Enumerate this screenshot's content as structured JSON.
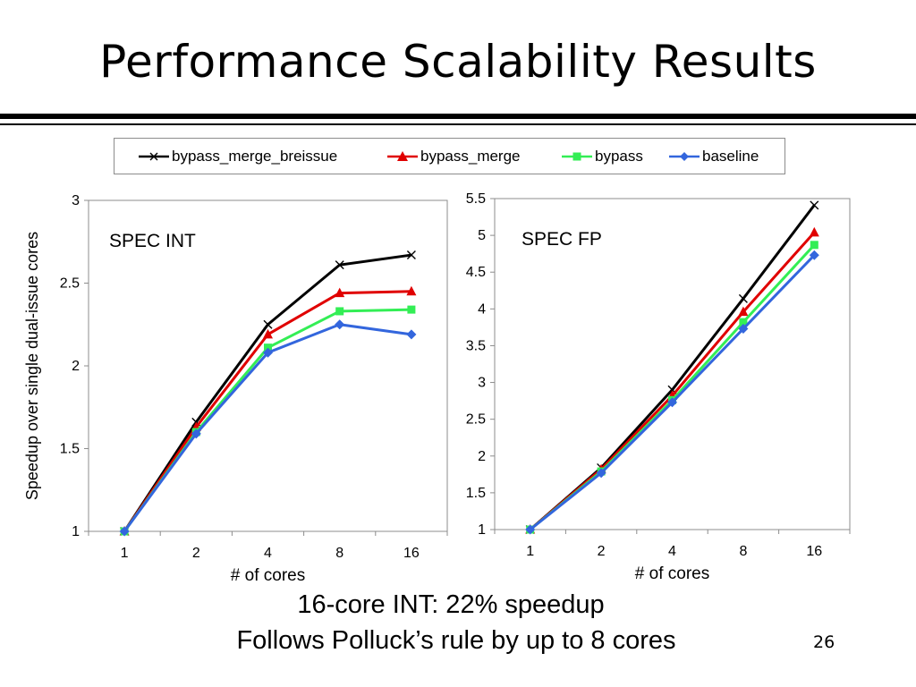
{
  "slide": {
    "title": "Performance Scalability Results",
    "caption_line1": "16-core INT: 22% speedup",
    "caption_line2": "Follows Polluck’s rule by up to 8 cores",
    "page_number": "26"
  },
  "legend": [
    {
      "name": "bypass_merge_breissue",
      "color": "#000000",
      "marker": "x"
    },
    {
      "name": "bypass_merge",
      "color": "#e00000",
      "marker": "triangle"
    },
    {
      "name": "bypass",
      "color": "#33ee55",
      "marker": "square"
    },
    {
      "name": "baseline",
      "color": "#3366dd",
      "marker": "diamond"
    }
  ],
  "chart_data": [
    {
      "type": "line",
      "title": "SPEC INT",
      "xlabel": "# of cores",
      "ylabel": "Speedup over single dual-issue cores",
      "categories": [
        "1",
        "2",
        "4",
        "8",
        "16"
      ],
      "ylim": [
        1,
        3
      ],
      "yticks": [
        "1",
        "1.5",
        "2",
        "2.5",
        "3"
      ],
      "grid": false,
      "series": [
        {
          "name": "bypass_merge_breissue",
          "color": "#000000",
          "marker": "x",
          "values": [
            1,
            1.66,
            2.25,
            2.61,
            2.67
          ]
        },
        {
          "name": "bypass_merge",
          "color": "#e00000",
          "marker": "triangle",
          "values": [
            1,
            1.63,
            2.19,
            2.44,
            2.45
          ]
        },
        {
          "name": "bypass",
          "color": "#33ee55",
          "marker": "square",
          "values": [
            1,
            1.6,
            2.11,
            2.33,
            2.34
          ]
        },
        {
          "name": "baseline",
          "color": "#3366dd",
          "marker": "diamond",
          "values": [
            1,
            1.59,
            2.08,
            2.25,
            2.19
          ]
        }
      ]
    },
    {
      "type": "line",
      "title": "SPEC FP",
      "xlabel": "# of cores",
      "ylabel": "",
      "categories": [
        "1",
        "2",
        "4",
        "8",
        "16"
      ],
      "ylim": [
        1,
        5.5
      ],
      "yticks": [
        "1",
        "1.5",
        "2",
        "2.5",
        "3",
        "3.5",
        "4",
        "4.5",
        "5",
        "5.5"
      ],
      "grid": false,
      "series": [
        {
          "name": "bypass_merge_breissue",
          "color": "#000000",
          "marker": "x",
          "values": [
            1,
            1.84,
            2.9,
            4.14,
            5.41
          ]
        },
        {
          "name": "bypass_merge",
          "color": "#e00000",
          "marker": "triangle",
          "values": [
            1,
            1.82,
            2.82,
            3.96,
            5.04
          ]
        },
        {
          "name": "bypass",
          "color": "#33ee55",
          "marker": "square",
          "values": [
            1,
            1.79,
            2.76,
            3.82,
            4.87
          ]
        },
        {
          "name": "baseline",
          "color": "#3366dd",
          "marker": "diamond",
          "values": [
            1,
            1.77,
            2.73,
            3.73,
            4.73
          ]
        }
      ]
    }
  ]
}
